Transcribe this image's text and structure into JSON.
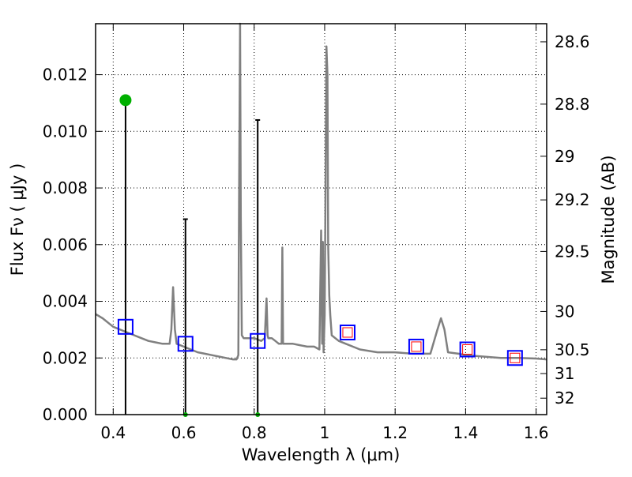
{
  "chart_data": {
    "type": "line",
    "title": "",
    "xlabel": "Wavelength  λ (μm)",
    "ylabel": "Flux  Fν  ( μJy )",
    "y2label": "Magnitude (AB)",
    "xlim": [
      0.35,
      1.63
    ],
    "ylim": [
      0.0,
      0.0138
    ],
    "xticks": [
      0.4,
      0.6,
      0.8,
      1.0,
      1.2,
      1.4,
      1.6
    ],
    "xtick_labels": [
      "0.4",
      "0.6",
      "0.8",
      "1",
      "1.2",
      "1.4",
      "1.6"
    ],
    "yticks": [
      0.0,
      0.002,
      0.004,
      0.006,
      0.008,
      0.01,
      0.012
    ],
    "ytick_labels": [
      "0.000",
      "0.002",
      "0.004",
      "0.006",
      "0.008",
      "0.010",
      "0.012"
    ],
    "y2ticks": [
      {
        "label": "28.6",
        "flux": 0.01316
      },
      {
        "label": "28.8",
        "flux": 0.01096
      },
      {
        "label": "29",
        "flux": 0.00912
      },
      {
        "label": "29.2",
        "flux": 0.00758
      },
      {
        "label": "29.5",
        "flux": 0.00576
      },
      {
        "label": "30",
        "flux": 0.00364
      },
      {
        "label": "30.5",
        "flux": 0.00229
      },
      {
        "label": "31",
        "flux": 0.00145
      },
      {
        "label": "32",
        "flux": 0.00058
      }
    ],
    "grid": true,
    "grid_style": "dotted",
    "series": [
      {
        "type": "line",
        "color": "#808080",
        "x": [
          0.35,
          0.37,
          0.39,
          0.4,
          0.42,
          0.44,
          0.46,
          0.48,
          0.5,
          0.52,
          0.54,
          0.56,
          0.565,
          0.57,
          0.575,
          0.58,
          0.6,
          0.62,
          0.64,
          0.66,
          0.68,
          0.7,
          0.72,
          0.74,
          0.75,
          0.755,
          0.757,
          0.76,
          0.762,
          0.765,
          0.77,
          0.78,
          0.79,
          0.8,
          0.82,
          0.83,
          0.835,
          0.838,
          0.84,
          0.85,
          0.86,
          0.87,
          0.878,
          0.88,
          0.882,
          0.89,
          0.91,
          0.93,
          0.95,
          0.97,
          0.985,
          0.99,
          0.993,
          0.995,
          0.997,
          1.0,
          1.005,
          1.008,
          1.01,
          1.013,
          1.016,
          1.02,
          1.04,
          1.06,
          1.08,
          1.1,
          1.15,
          1.2,
          1.25,
          1.3,
          1.32,
          1.33,
          1.34,
          1.35,
          1.38,
          1.4,
          1.45,
          1.5,
          1.55,
          1.6,
          1.63
        ],
        "y": [
          0.00355,
          0.0034,
          0.0032,
          0.0031,
          0.003,
          0.0029,
          0.0028,
          0.0027,
          0.0026,
          0.00255,
          0.0025,
          0.0025,
          0.003,
          0.0045,
          0.003,
          0.0025,
          0.0024,
          0.0023,
          0.0022,
          0.00215,
          0.0021,
          0.00205,
          0.002,
          0.00195,
          0.00195,
          0.0021,
          0.0075,
          0.0138,
          0.007,
          0.0028,
          0.0027,
          0.0027,
          0.0027,
          0.0027,
          0.0026,
          0.0027,
          0.0041,
          0.0028,
          0.0027,
          0.0027,
          0.0026,
          0.0025,
          0.0025,
          0.0059,
          0.0025,
          0.0025,
          0.0025,
          0.00245,
          0.0024,
          0.0024,
          0.0023,
          0.0065,
          0.0025,
          0.0061,
          0.0022,
          0.0035,
          0.013,
          0.012,
          0.006,
          0.0042,
          0.0035,
          0.0028,
          0.0026,
          0.0025,
          0.0024,
          0.0023,
          0.0022,
          0.0022,
          0.00215,
          0.00215,
          0.003,
          0.0034,
          0.003,
          0.0022,
          0.00215,
          0.0021,
          0.00205,
          0.002,
          0.002,
          0.00198,
          0.00195
        ]
      },
      {
        "type": "model-photometry",
        "marker": "square",
        "color": "#0000ff",
        "x": [
          0.435,
          0.605,
          0.81,
          1.065,
          1.26,
          1.405,
          1.54
        ],
        "y": [
          0.0031,
          0.0025,
          0.0026,
          0.0029,
          0.0024,
          0.0023,
          0.002
        ]
      },
      {
        "type": "observed",
        "marker": "square",
        "color": "#ff0000",
        "x": [
          1.065,
          1.26,
          1.405,
          1.54
        ],
        "y": [
          0.0029,
          0.0024,
          0.0023,
          0.002
        ]
      },
      {
        "type": "observed-errorbar",
        "marker": "circle",
        "color": "#00b000",
        "x": [
          0.435,
          0.605,
          0.81
        ],
        "y": [
          0.0111,
          0.0,
          0.0
        ],
        "yerr_low": [
          0.0111,
          0.0,
          0.0
        ],
        "yerr_high": [
          0.0,
          0.0069,
          0.0104
        ]
      }
    ]
  }
}
